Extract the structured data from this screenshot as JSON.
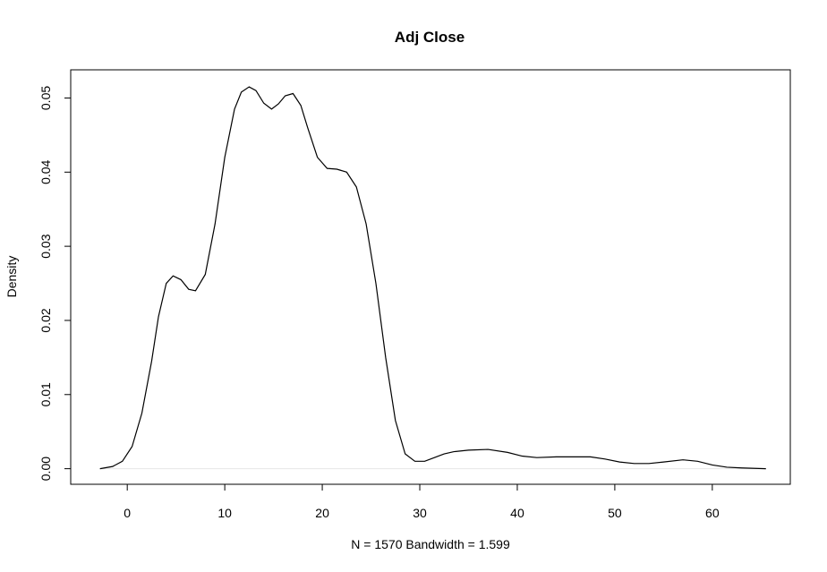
{
  "chart_data": {
    "type": "line",
    "title": "Adj Close",
    "xlabel": "N = 1570   Bandwidth = 1.599",
    "ylabel": "Density",
    "xlim": [
      -5.8,
      68.0
    ],
    "ylim": [
      -0.0021,
      0.0538
    ],
    "x_ticks": [
      0,
      10,
      20,
      30,
      40,
      50,
      60
    ],
    "y_ticks": [
      0.0,
      0.01,
      0.02,
      0.03,
      0.04,
      0.05
    ],
    "x_tick_labels": [
      "0",
      "10",
      "20",
      "30",
      "40",
      "50",
      "60"
    ],
    "y_tick_labels": [
      "0.00",
      "0.01",
      "0.02",
      "0.03",
      "0.04",
      "0.05"
    ],
    "grid": false,
    "series": [
      {
        "x": [
          -2.8,
          -1.5,
          -0.5,
          0.5,
          1.5,
          2.5,
          3.2,
          4.0,
          4.7,
          5.5,
          6.3,
          7.0,
          8.0,
          9.0,
          10.0,
          11.0,
          11.7,
          12.5,
          13.2,
          14.0,
          14.8,
          15.5,
          16.2,
          17.0,
          17.8,
          18.5,
          19.5,
          20.5,
          21.5,
          22.5,
          23.5,
          24.5,
          25.5,
          26.5,
          27.5,
          28.5,
          29.5,
          30.5,
          31.5,
          32.5,
          33.5,
          35.0,
          37.0,
          39.0,
          40.5,
          42.0,
          44.0,
          46.0,
          47.5,
          49.0,
          50.5,
          52.0,
          53.5,
          55.0,
          57.0,
          58.5,
          60.0,
          61.5,
          63.0,
          65.5
        ],
        "y": [
          0.0,
          0.0003,
          0.001,
          0.003,
          0.0075,
          0.0145,
          0.0205,
          0.025,
          0.026,
          0.0255,
          0.0242,
          0.024,
          0.0262,
          0.033,
          0.042,
          0.0485,
          0.0508,
          0.0515,
          0.051,
          0.0493,
          0.0485,
          0.0492,
          0.0503,
          0.0506,
          0.049,
          0.046,
          0.042,
          0.0405,
          0.0404,
          0.04,
          0.038,
          0.033,
          0.025,
          0.015,
          0.0065,
          0.002,
          0.001,
          0.001,
          0.0015,
          0.002,
          0.0023,
          0.0025,
          0.0026,
          0.0022,
          0.0017,
          0.0015,
          0.0016,
          0.0016,
          0.0016,
          0.0013,
          0.0009,
          0.0007,
          0.0007,
          0.0009,
          0.0012,
          0.001,
          0.0005,
          0.0002,
          0.0001,
          0.0
        ]
      }
    ]
  }
}
